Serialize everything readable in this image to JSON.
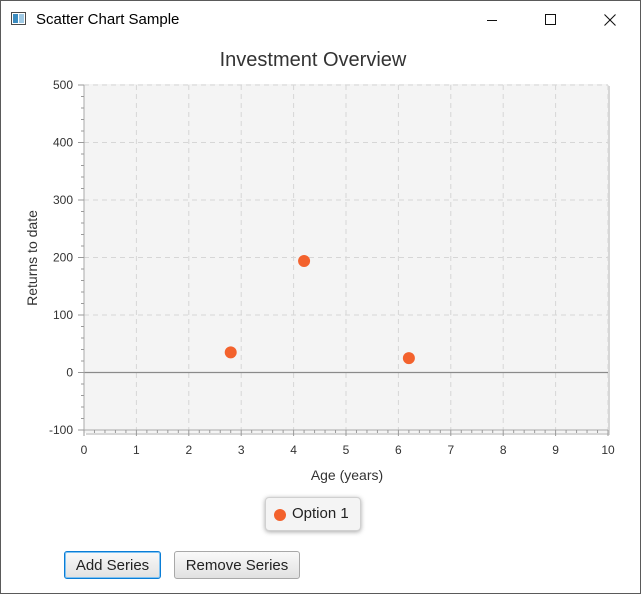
{
  "window": {
    "title": "Scatter Chart Sample"
  },
  "chart_data": {
    "type": "scatter",
    "title": "Investment Overview",
    "xlabel": "Age (years)",
    "ylabel": "Returns to date",
    "xlim": [
      0,
      10
    ],
    "ylim": [
      -100,
      500
    ],
    "x_ticks": [
      0,
      1,
      2,
      3,
      4,
      5,
      6,
      7,
      8,
      9,
      10
    ],
    "y_ticks": [
      -100,
      0,
      100,
      200,
      300,
      400,
      500
    ],
    "grid": true,
    "legend_position": "bottom",
    "series": [
      {
        "name": "Option 1",
        "color": "#f3622d",
        "points": [
          {
            "x": 2.8,
            "y": 35
          },
          {
            "x": 4.2,
            "y": 194
          },
          {
            "x": 6.2,
            "y": 25
          }
        ]
      }
    ]
  },
  "buttons": {
    "add_series": "Add Series",
    "remove_series": "Remove Series"
  },
  "icons": {
    "app": "chart-window-icon",
    "minimize": "minimize-icon",
    "maximize": "maximize-icon",
    "close": "close-icon"
  }
}
